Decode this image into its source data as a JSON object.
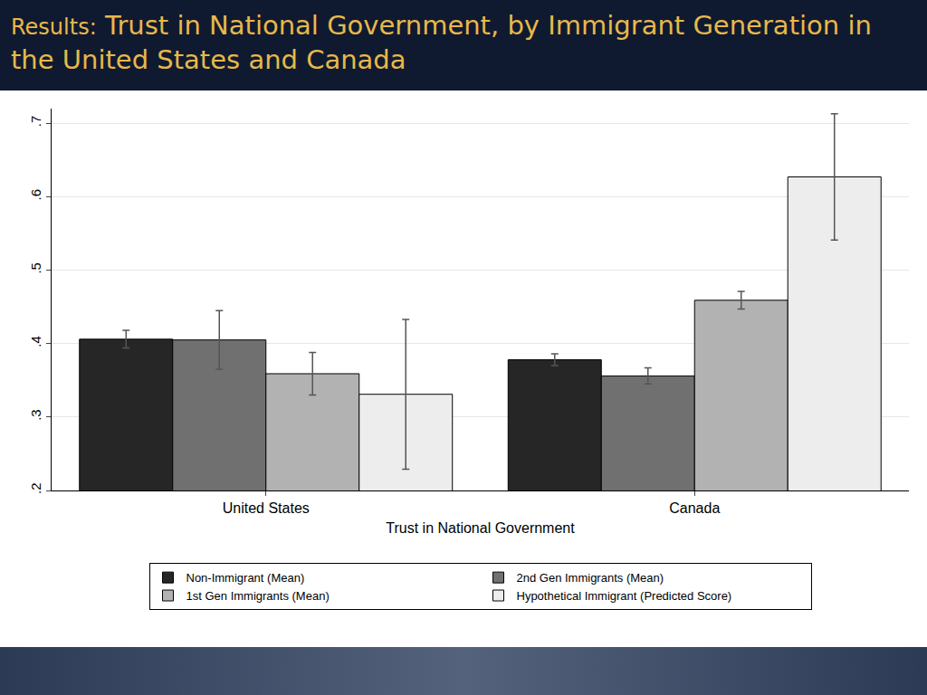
{
  "chart_data": {
    "type": "bar",
    "title": "Results: Trust in National Government, by Immigrant Generation in the United States and Canada",
    "x_label": "Trust in National Government",
    "categories": [
      "United States",
      "Canada"
    ],
    "series": [
      {
        "name": "Non-Immigrant (Mean)",
        "color": "#262626",
        "values": [
          0.406,
          0.378
        ],
        "errors": [
          0.012,
          0.008
        ]
      },
      {
        "name": "2nd Gen Immigrants (Mean)",
        "color": "#707070",
        "values": [
          0.405,
          0.356
        ],
        "errors": [
          0.04,
          0.011
        ]
      },
      {
        "name": "1st Gen Immigrants (Mean)",
        "color": "#b2b2b2",
        "values": [
          0.359,
          0.459
        ],
        "errors": [
          0.029,
          0.012
        ]
      },
      {
        "name": "Hypothetical Immigrant (Predicted Score)",
        "color": "#ededed",
        "values": [
          0.331,
          0.627
        ],
        "errors": [
          0.102,
          0.086
        ]
      }
    ],
    "ylim": [
      0.2,
      0.72
    ],
    "yticks": [
      {
        "value": 0.2,
        "label": ".2"
      },
      {
        "value": 0.3,
        "label": ".3"
      },
      {
        "value": 0.4,
        "label": ".4"
      },
      {
        "value": 0.5,
        "label": ".5"
      },
      {
        "value": 0.6,
        "label": ".6"
      },
      {
        "value": 0.7,
        "label": ".7"
      }
    ],
    "grid": true,
    "legend": "bottom"
  }
}
